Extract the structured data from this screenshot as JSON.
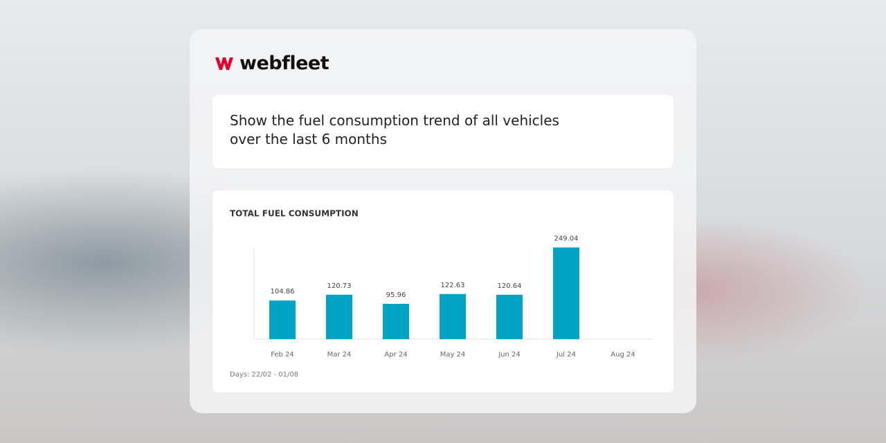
{
  "logo": {
    "text": "webfleet"
  },
  "prompt": {
    "text": "Show the fuel consumption trend of all vehicles over the last 6 months"
  },
  "chart_data": {
    "type": "bar",
    "title": "TOTAL FUEL CONSUMPTION",
    "categories": [
      "Feb 24",
      "Mar 24",
      "Apr 24",
      "May 24",
      "Jun 24",
      "Jul 24",
      "Aug 24"
    ],
    "values": [
      104.86,
      120.73,
      95.96,
      122.63,
      120.64,
      249.04,
      null
    ],
    "color": "#00a3c4",
    "ylim": [
      0,
      250
    ],
    "note": "Days: 22/02 - 01/08"
  }
}
